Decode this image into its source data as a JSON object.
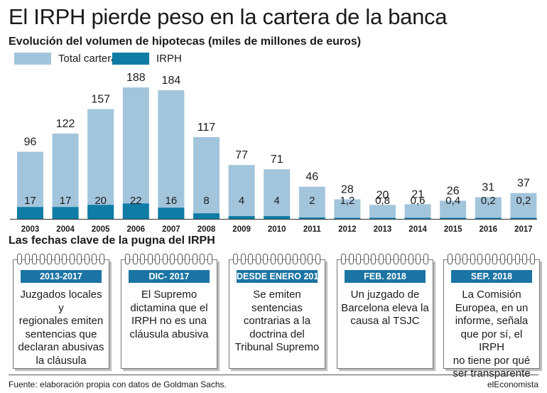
{
  "title": "El IRPH pierde peso en la cartera de la banca",
  "subtitle": "Evolución del volumen de hipotecas (miles de millones de euros)",
  "colors": {
    "total": "#a3c5dc",
    "irph": "#0f7ca6",
    "tab": "#1b74a3"
  },
  "chart_data": {
    "type": "bar",
    "title": "Evolución del volumen de hipotecas (miles de millones de euros)",
    "categories": [
      "2003",
      "2004",
      "2005",
      "2006",
      "2007",
      "2008",
      "2009",
      "2010",
      "2011",
      "2012",
      "2013",
      "2014",
      "2015",
      "2016",
      "2017"
    ],
    "series": [
      {
        "name": "Total cartera",
        "values": [
          96,
          122,
          157,
          188,
          184,
          117,
          77,
          71,
          46,
          28,
          20,
          21,
          26,
          31,
          37
        ],
        "labels": [
          "96",
          "122",
          "157",
          "188",
          "184",
          "117",
          "77",
          "71",
          "46",
          "28",
          "20",
          "21",
          "26",
          "31",
          "37"
        ]
      },
      {
        "name": "IRPH",
        "values": [
          17,
          17,
          20,
          22,
          16,
          8,
          4,
          4,
          2,
          1.2,
          0.8,
          0.6,
          0.4,
          0.2,
          0.2
        ],
        "labels": [
          "17",
          "17",
          "20",
          "22",
          "16",
          "8",
          "4",
          "4",
          "2",
          "1,2",
          "0,8",
          "0,6",
          "0,4",
          "0,2",
          "0,2"
        ]
      }
    ],
    "ylim": [
      0,
      188
    ],
    "legend": "top-left",
    "grid": false
  },
  "timeline": {
    "heading": "Las fechas clave de la pugna del IRPH",
    "cards": [
      {
        "date": "2013-2017",
        "lines": [
          "Juzgados locales y",
          "regionales emiten",
          "sentencias que",
          "declaran abusivas",
          "la cláusula"
        ]
      },
      {
        "date": "DIC- 2017",
        "lines": [
          "El Supremo",
          "dictamina que el",
          "IRPH no es una",
          "cláusula abusiva"
        ]
      },
      {
        "date": "DESDE ENERO 2018",
        "lines": [
          "Se emiten",
          "sentencias",
          "contrarias a la",
          "doctrina del",
          "Tribunal Supremo"
        ]
      },
      {
        "date": "FEB. 2018",
        "lines": [
          "Un juzgado de",
          "Barcelona eleva la",
          "causa al TSJC"
        ]
      },
      {
        "date": "SEP. 2018",
        "lines": [
          "La Comisión",
          "Europea, en un",
          "informe, señala",
          "que por sí, el IRPH",
          "no tiene por qué",
          "ser transparente"
        ]
      }
    ]
  },
  "footer": {
    "source": "Fuente: elaboración propia con datos de Goldman Sachs.",
    "brand": "elEconomista"
  }
}
